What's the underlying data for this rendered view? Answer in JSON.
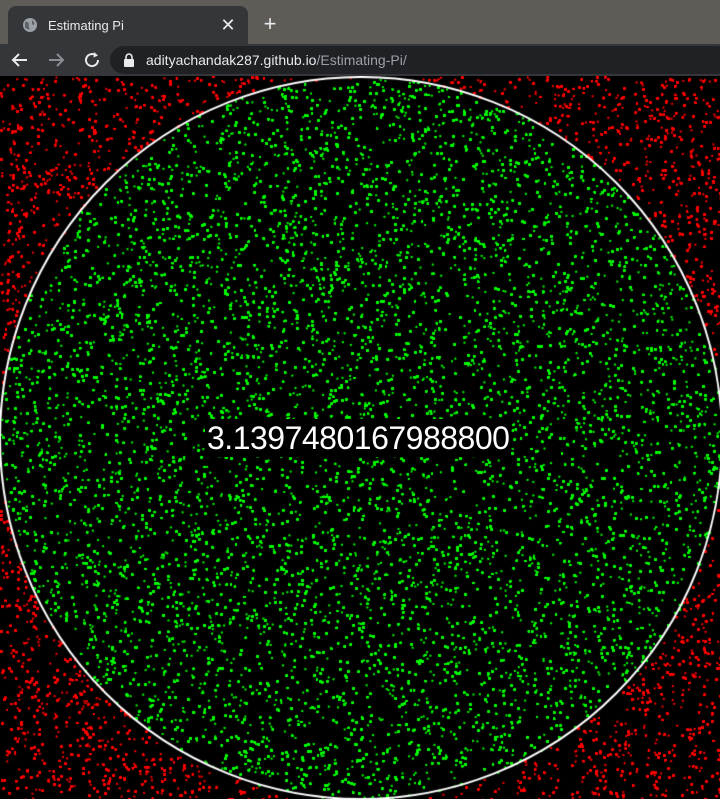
{
  "tab": {
    "title": "Estimating Pi",
    "favicon": "globe-icon",
    "close_label": "✕"
  },
  "new_tab_label": "+",
  "address_bar": {
    "host": "adityachandak287.github.io",
    "path": "/Estimating-Pi/"
  },
  "simulation": {
    "estimate": "3.1397480167988800",
    "colors": {
      "inside": "#00ff00",
      "outside": "#ff0000",
      "circle": "#ffffff",
      "background": "#000000"
    }
  }
}
